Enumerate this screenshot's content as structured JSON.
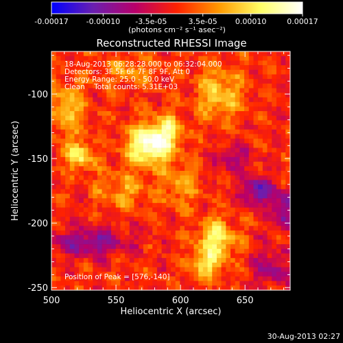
{
  "chart_data": {
    "type": "heatmap",
    "title": "Reconstructed RHESSI Image",
    "xlabel": "Heliocentric X (arcsec)",
    "ylabel": "Heliocentric Y (arcsec)",
    "xlim": [
      500,
      685
    ],
    "ylim": [
      -252,
      -67
    ],
    "x_ticks": [
      "500",
      "550",
      "600",
      "650"
    ],
    "x_tick_values": [
      500,
      550,
      600,
      650
    ],
    "y_ticks": [
      "-100",
      "-150",
      "-200",
      "-250"
    ],
    "y_tick_values": [
      -100,
      -150,
      -200,
      -250
    ],
    "colorbar": {
      "unit_label": "(photons cm⁻² s⁻¹ asec⁻²)",
      "ticks": [
        "-0.00017",
        "-0.00010",
        "-3.5e-05",
        "3.5e-05",
        "0.00010",
        "0.00017"
      ],
      "tick_values": [
        -0.00017,
        -0.0001,
        -3.5e-05,
        3.5e-05,
        0.0001,
        0.00017
      ],
      "range": [
        -0.00017,
        0.00017
      ],
      "colormap": [
        "#0000ff",
        "#6a1fb0",
        "#b8006a",
        "#ff2200",
        "#ff9900",
        "#ffff66",
        "#ffffff"
      ]
    },
    "info_lines": [
      "18-Aug-2013 06:28:28.000 to 06:32:04.000",
      "Detectors: 3F 5F 6F 7F 8F 9F, Att 0",
      "Energy Range: 25.0 - 50.0 keV",
      "Clean    Total counts: 5.31E+03"
    ],
    "peak_text": "Position of Peak = [576,-140]",
    "peak": [
      576,
      -140
    ],
    "sources": [
      {
        "x": 576,
        "y": -140,
        "sx": 12,
        "sy": 11,
        "amp": 0.000165
      },
      {
        "x": 590,
        "y": -128,
        "sx": 8,
        "sy": 9,
        "amp": 9e-05
      },
      {
        "x": 522,
        "y": -148,
        "sx": 8,
        "sy": 7,
        "amp": 0.00011
      },
      {
        "x": 628,
        "y": -212,
        "sx": 10,
        "sy": 10,
        "amp": 0.00012
      },
      {
        "x": 620,
        "y": -232,
        "sx": 9,
        "sy": 8,
        "amp": 9e-05
      },
      {
        "x": 630,
        "y": -100,
        "sx": 12,
        "sy": 14,
        "amp": 9e-05
      },
      {
        "x": 512,
        "y": -112,
        "sx": 10,
        "sy": 16,
        "amp": 8e-05
      },
      {
        "x": 555,
        "y": -175,
        "sx": 14,
        "sy": 10,
        "amp": 6e-05
      },
      {
        "x": 600,
        "y": -170,
        "sx": 10,
        "sy": 12,
        "amp": 6e-05
      },
      {
        "x": 560,
        "y": -82,
        "sx": 16,
        "sy": 8,
        "amp": 5e-05
      },
      {
        "x": 660,
        "y": -175,
        "sx": 8,
        "sy": 8,
        "amp": -0.00012
      },
      {
        "x": 530,
        "y": -215,
        "sx": 22,
        "sy": 8,
        "amp": -9e-05
      },
      {
        "x": 680,
        "y": -190,
        "sx": 6,
        "sy": 10,
        "amp": -0.00011
      },
      {
        "x": 640,
        "y": -150,
        "sx": 10,
        "sy": 8,
        "amp": -6e-05
      },
      {
        "x": 670,
        "y": -235,
        "sx": 10,
        "sy": 10,
        "amp": -7e-05
      }
    ]
  },
  "footer_timestamp": "30-Aug-2013 02:27"
}
